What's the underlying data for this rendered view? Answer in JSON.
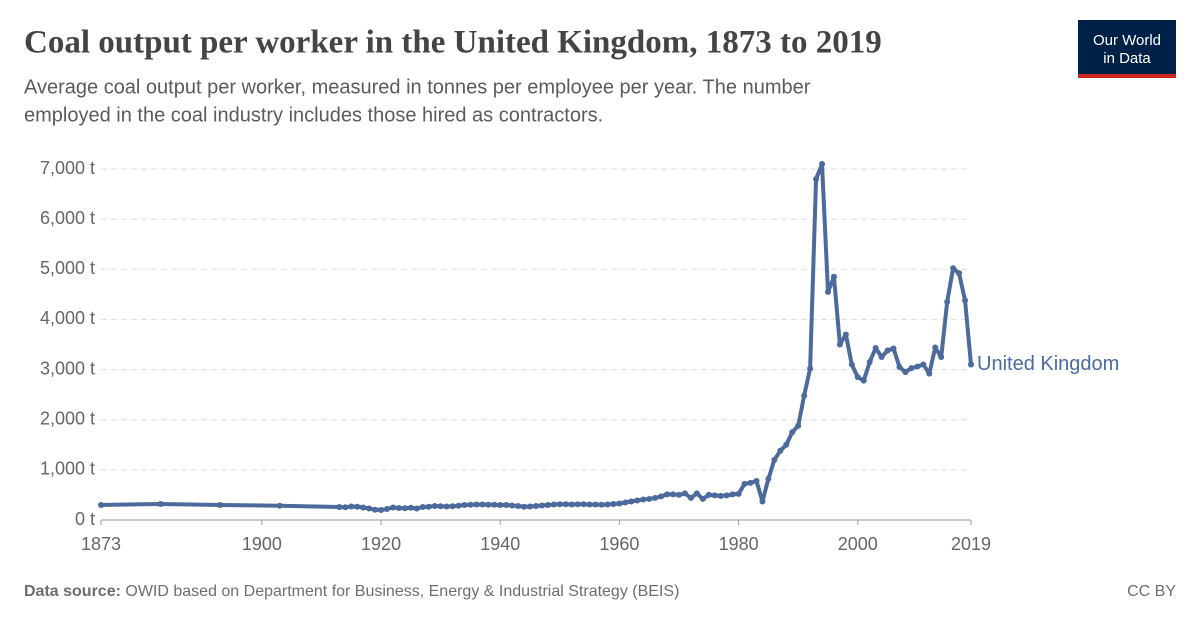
{
  "chart_data": {
    "type": "line",
    "title": "Coal output per worker in the United Kingdom, 1873 to 2019",
    "subtitle": [
      "Average coal output per worker, measured in tonnes per employee per year. The number",
      "employed in the coal industry includes those hired as contractors."
    ],
    "x": [
      1873,
      1883,
      1893,
      1903,
      1913,
      1914,
      1915,
      1916,
      1917,
      1918,
      1919,
      1920,
      1921,
      1922,
      1923,
      1924,
      1925,
      1926,
      1927,
      1928,
      1929,
      1930,
      1931,
      1932,
      1933,
      1934,
      1935,
      1936,
      1937,
      1938,
      1939,
      1940,
      1941,
      1942,
      1943,
      1944,
      1945,
      1946,
      1947,
      1948,
      1949,
      1950,
      1951,
      1952,
      1953,
      1954,
      1955,
      1956,
      1957,
      1958,
      1959,
      1960,
      1961,
      1962,
      1963,
      1964,
      1965,
      1966,
      1967,
      1968,
      1969,
      1970,
      1971,
      1972,
      1973,
      1974,
      1975,
      1976,
      1977,
      1978,
      1979,
      1980,
      1981,
      1982,
      1983,
      1984,
      1985,
      1986,
      1987,
      1988,
      1989,
      1990,
      1991,
      1992,
      1993,
      1994,
      1995,
      1996,
      1997,
      1998,
      1999,
      2000,
      2001,
      2002,
      2003,
      2004,
      2005,
      2006,
      2007,
      2008,
      2009,
      2010,
      2011,
      2012,
      2013,
      2014,
      2015,
      2016,
      2017,
      2018,
      2019
    ],
    "series": [
      {
        "name": "United Kingdom",
        "color": "#4c6a9c",
        "values": [
          300,
          320,
          300,
          285,
          260,
          255,
          270,
          265,
          250,
          230,
          205,
          200,
          220,
          250,
          240,
          235,
          245,
          230,
          260,
          265,
          280,
          275,
          270,
          275,
          285,
          300,
          305,
          310,
          310,
          305,
          305,
          300,
          300,
          290,
          280,
          265,
          270,
          280,
          290,
          300,
          310,
          315,
          315,
          310,
          315,
          315,
          310,
          310,
          305,
          310,
          320,
          330,
          350,
          370,
          390,
          410,
          420,
          440,
          470,
          510,
          510,
          500,
          530,
          440,
          530,
          420,
          500,
          490,
          480,
          490,
          510,
          520,
          720,
          740,
          780,
          370,
          820,
          1200,
          1380,
          1500,
          1750,
          1880,
          2480,
          3020,
          6800,
          7100,
          4550,
          4850,
          3500,
          3700,
          3100,
          2850,
          2780,
          3150,
          3430,
          3250,
          3380,
          3420,
          3050,
          2950,
          3030,
          3060,
          3100,
          2920,
          3440,
          3250,
          4350,
          5020,
          4920,
          4380,
          3100
        ]
      }
    ],
    "xlim": [
      1873,
      2019
    ],
    "xticks": [
      1873,
      1900,
      1920,
      1940,
      1960,
      1980,
      2000,
      2019
    ],
    "ylim": [
      0,
      7000
    ],
    "yticks": [
      {
        "value": 0,
        "label": "0 t"
      },
      {
        "value": 1000,
        "label": "1,000 t"
      },
      {
        "value": 2000,
        "label": "2,000 t"
      },
      {
        "value": 3000,
        "label": "3,000 t"
      },
      {
        "value": 4000,
        "label": "4,000 t"
      },
      {
        "value": 5000,
        "label": "5,000 t"
      },
      {
        "value": 6000,
        "label": "6,000 t"
      },
      {
        "value": 7000,
        "label": "7,000 t"
      }
    ],
    "grid": true
  },
  "source_label": "Data source:",
  "source": "OWID based on Department for Business, Energy & Industrial Strategy (BEIS)",
  "license": "CC BY",
  "logo": [
    "Our World",
    "in Data"
  ]
}
